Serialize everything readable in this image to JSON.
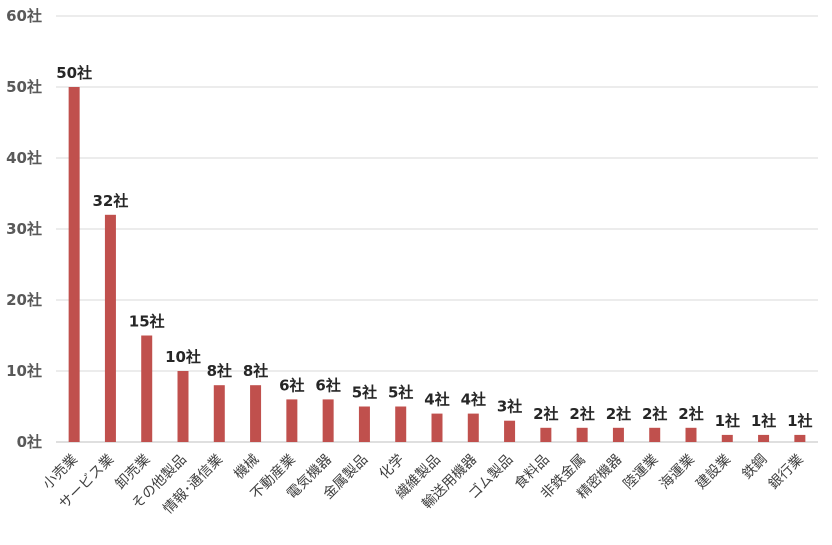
{
  "chart_data": {
    "type": "bar",
    "title": "",
    "xlabel": "",
    "ylabel": "",
    "ylim": [
      0,
      60
    ],
    "yticks": [
      0,
      10,
      20,
      30,
      40,
      50,
      60
    ],
    "unit_suffix": "社",
    "grid": true,
    "legend": "none",
    "bar_color": "#c0504d",
    "categories": [
      "小売業",
      "サービス業",
      "卸売業",
      "その他製品",
      "情報･通信業",
      "機械",
      "不動産業",
      "電気機器",
      "金属製品",
      "化学",
      "繊維製品",
      "輸送用機器",
      "ゴム製品",
      "食料品",
      "非鉄金属",
      "精密機器",
      "陸運業",
      "海運業",
      "建設業",
      "鉄鋼",
      "銀行業"
    ],
    "values": [
      50,
      32,
      15,
      10,
      8,
      8,
      6,
      6,
      5,
      5,
      4,
      4,
      3,
      2,
      2,
      2,
      2,
      2,
      1,
      1,
      1
    ],
    "data_labels": [
      "50社",
      "32社",
      "15社",
      "10社",
      "8社",
      "8社",
      "6社",
      "6社",
      "5社",
      "5社",
      "4社",
      "4社",
      "3社",
      "2社",
      "2社",
      "2社",
      "2社",
      "2社",
      "1社",
      "1社",
      "1社"
    ],
    "ytick_labels": [
      "0社",
      "10社",
      "20社",
      "30社",
      "40社",
      "50社",
      "60社"
    ]
  }
}
